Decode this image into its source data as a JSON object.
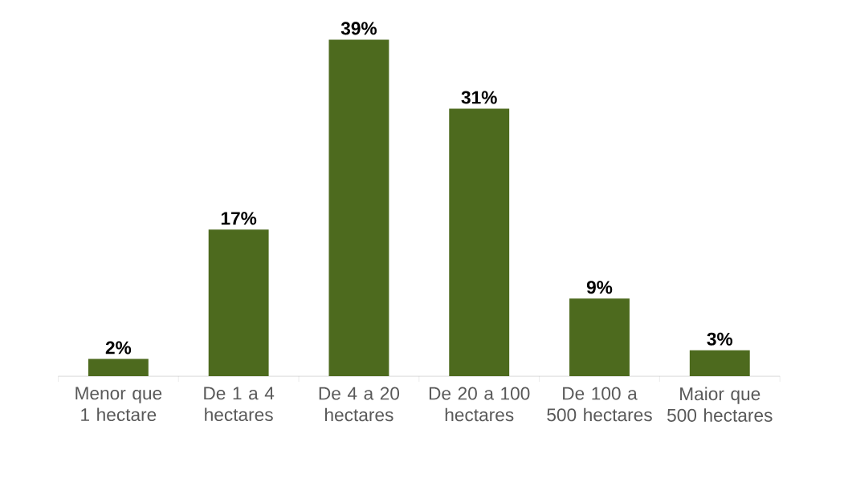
{
  "chart_data": {
    "type": "bar",
    "categories": [
      "Menor que 1 hectare",
      "De 1 a 4 hectares",
      "De 4 a 20 hectares",
      "De 20 a 100 hectares",
      "De 100 a 500 hectares",
      "Maior que 500 hectares"
    ],
    "values": [
      2,
      17,
      39,
      31,
      9,
      3
    ],
    "value_labels": [
      "2%",
      "17%",
      "39%",
      "31%",
      "9%",
      "3%"
    ],
    "color": "#4d6a1e"
  }
}
